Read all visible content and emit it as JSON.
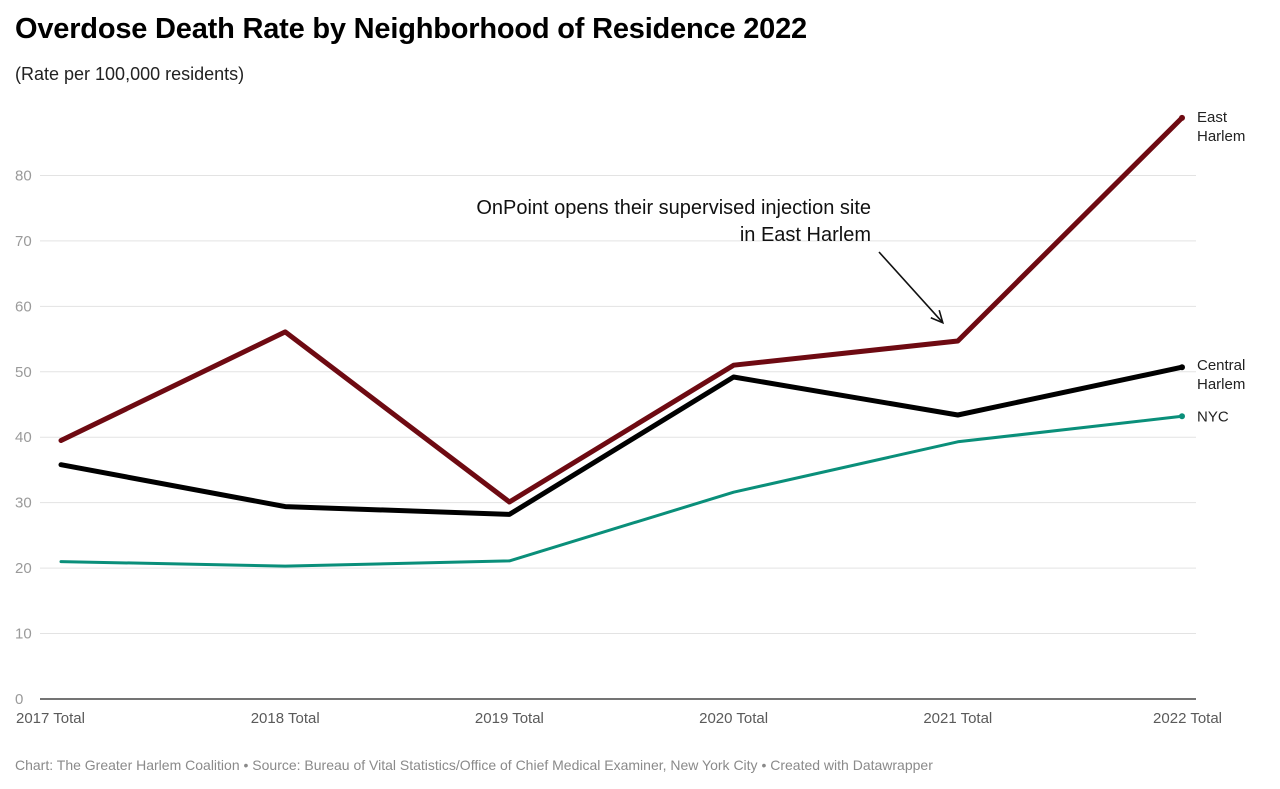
{
  "header": {
    "title": "Overdose Death Rate by Neighborhood of Residence 2022",
    "subtitle": "(Rate per 100,000 residents)"
  },
  "footer": {
    "credit": "Chart: The Greater Harlem Coalition • Source: Bureau of Vital Statistics/Office of Chief Medical Examiner, New York City • Created with Datawrapper"
  },
  "chart_data": {
    "type": "line",
    "title": "Overdose Death Rate by Neighborhood of Residence 2022",
    "subtitle": "(Rate per 100,000 residents)",
    "xlabel": "",
    "ylabel": "",
    "categories": [
      "2017 Total",
      "2018 Total",
      "2019 Total",
      "2020 Total",
      "2021 Total",
      "2022 Total"
    ],
    "ylim": [
      0,
      90
    ],
    "yticks": [
      0,
      10,
      20,
      30,
      40,
      50,
      60,
      70,
      80
    ],
    "grid": true,
    "series": [
      {
        "name": "NYC",
        "label_lines": [
          "NYC"
        ],
        "color": "#0a8f7a",
        "width": 3,
        "values": [
          21.0,
          20.3,
          21.1,
          31.6,
          39.3,
          43.2
        ]
      },
      {
        "name": "Central Harlem",
        "label_lines": [
          "Central",
          "Harlem"
        ],
        "color": "#000000",
        "width": 5,
        "values": [
          35.8,
          29.4,
          28.2,
          49.2,
          43.4,
          50.7
        ]
      },
      {
        "name": "East Harlem",
        "label_lines": [
          "East",
          "Harlem"
        ],
        "color": "#6e0a12",
        "width": 5,
        "values": [
          39.5,
          56.1,
          30.1,
          51.0,
          54.7,
          88.8
        ]
      }
    ],
    "annotations": [
      {
        "lines": [
          "OnPoint opens their supervised injection site",
          "in East Harlem"
        ],
        "points_to": {
          "category": "2021 Total",
          "value": 57.5
        }
      }
    ]
  }
}
